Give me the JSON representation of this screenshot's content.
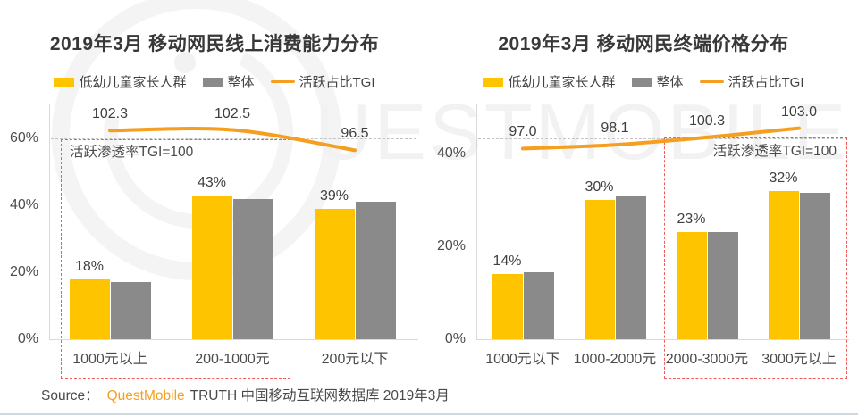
{
  "watermark": {
    "text": "UESTMOBILE"
  },
  "legend": {
    "parents": "低幼儿童家长人群",
    "overall": "整体",
    "tgi": "活跃占比TGI"
  },
  "source": {
    "prefix": "Source：",
    "brand": "QuestMobile",
    "suffix": "TRUTH 中国移动互联网数据库 2019年3月"
  },
  "colors": {
    "brand_yellow": "#FFC400",
    "overall_gray": "#8A8A8A",
    "tgi_orange": "#F59E1F",
    "annotation_red": "#EF5B5B",
    "reference_dash_gray": "#C4C4C4",
    "axis_gray": "#D9D9D9",
    "source_brand_orange": "#F59E1F",
    "divider_blue_gray": "#CED8DF"
  },
  "chart_data": [
    {
      "type": "bar+line",
      "title": "2019年3月 移动网民线上消费能力分布",
      "categories": [
        "1000元以上",
        "200-1000元",
        "200元以下"
      ],
      "yticks": [
        "0%",
        "20%",
        "40%",
        "60%"
      ],
      "ylim": [
        0,
        70
      ],
      "grid": "off",
      "legend_position": "top",
      "series": [
        {
          "name": "低幼儿童家长人群",
          "values": [
            18,
            43,
            39
          ],
          "labels": [
            "18%",
            "43%",
            "39%"
          ]
        },
        {
          "name": "整体",
          "values": [
            17,
            42,
            41
          ]
        }
      ],
      "line": {
        "name": "活跃占比TGI",
        "values": [
          102.3,
          102.5,
          96.5
        ],
        "labels": [
          "102.3",
          "102.5",
          "96.5"
        ],
        "reference_value": 100
      },
      "annotation": "活跃渗透率TGI=100",
      "annotation_covers": [
        "1000元以上",
        "200-1000元"
      ],
      "annotation_label_align": "left"
    },
    {
      "type": "bar+line",
      "title": "2019年3月 移动网民终端价格分布",
      "categories": [
        "1000元以下",
        "1000-2000元",
        "2000-3000元",
        "3000元以上"
      ],
      "yticks": [
        "0%",
        "20%",
        "40%"
      ],
      "ylim": [
        0,
        50
      ],
      "grid": "off",
      "legend_position": "top",
      "series": [
        {
          "name": "低幼儿童家长人群",
          "values": [
            14,
            30,
            23,
            32
          ],
          "labels": [
            "14%",
            "30%",
            "23%",
            "32%"
          ]
        },
        {
          "name": "整体",
          "values": [
            14.5,
            31,
            23,
            31.5
          ]
        }
      ],
      "line": {
        "name": "活跃占比TGI",
        "values": [
          97.0,
          98.1,
          100.3,
          103.0
        ],
        "labels": [
          "97.0",
          "98.1",
          "100.3",
          "103.0"
        ],
        "reference_value": 100
      },
      "annotation": "活跃渗透率TGI=100",
      "annotation_covers": [
        "2000-3000元",
        "3000元以上"
      ],
      "annotation_label_align": "right"
    }
  ]
}
